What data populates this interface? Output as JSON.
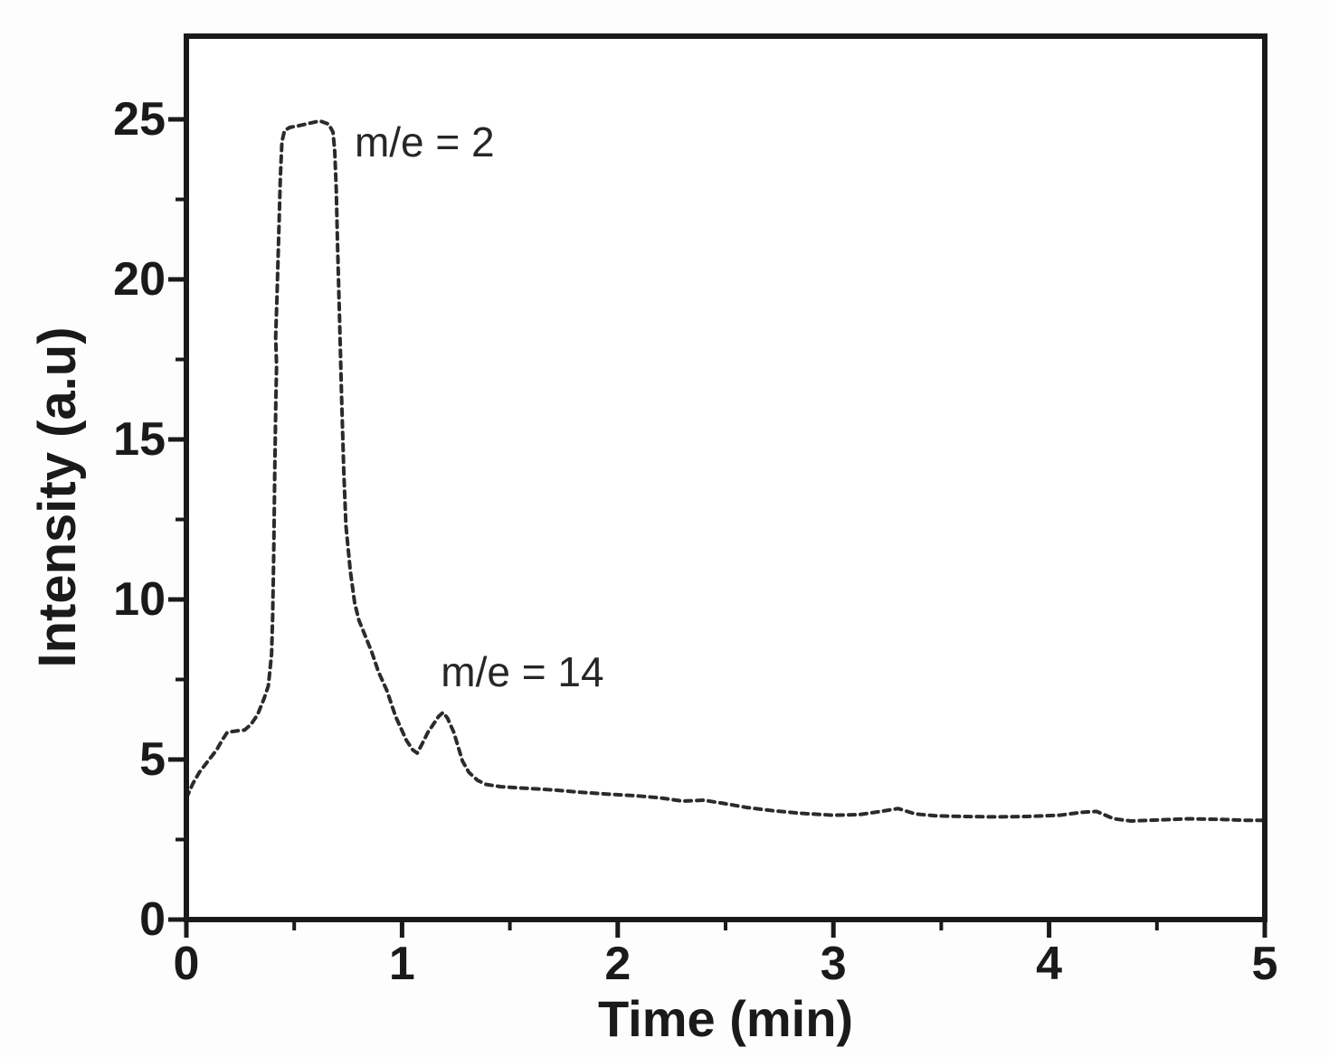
{
  "figure": {
    "background": "#fdfdfd",
    "plot_background": "#ffffff",
    "frame_color": "#1a1a1a",
    "text_color": "#1a1a1a"
  },
  "chart_data": {
    "type": "line",
    "title": "",
    "xlabel": "Time (min)",
    "ylabel": "Intensity (a.u)",
    "xlim": [
      0,
      5
    ],
    "ylim": [
      0,
      27.6
    ],
    "grid": false,
    "legend": false,
    "x_major_ticks": [
      0,
      1,
      2,
      3,
      4,
      5
    ],
    "x_minor_ticks": [
      0.5,
      1.5,
      2.5,
      3.5,
      4.5
    ],
    "y_major_ticks": [
      0,
      5,
      10,
      15,
      20,
      25
    ],
    "y_minor_ticks": [
      2.5,
      7.5,
      12.5,
      17.5,
      22.5
    ],
    "annotations": [
      {
        "id": "annotation-me-2",
        "text": "m/e = 2",
        "x": 0.78,
        "y": 24.3
      },
      {
        "id": "annotation-me-14",
        "text": "m/e = 14",
        "x": 1.18,
        "y": 7.74
      }
    ],
    "series": [
      {
        "name": "ion-current-trace",
        "style": "dashed",
        "color": "#2b2b2b",
        "points": [
          [
            0,
            3.8
          ],
          [
            0.03,
            4.25
          ],
          [
            0.06,
            4.6
          ],
          [
            0.1,
            4.95
          ],
          [
            0.14,
            5.3
          ],
          [
            0.17,
            5.65
          ],
          [
            0.19,
            5.85
          ],
          [
            0.24,
            5.9
          ],
          [
            0.27,
            5.92
          ],
          [
            0.3,
            6.1
          ],
          [
            0.33,
            6.4
          ],
          [
            0.36,
            6.9
          ],
          [
            0.38,
            7.3
          ],
          [
            0.395,
            8.3
          ],
          [
            0.4,
            9.5
          ],
          [
            0.405,
            11.5
          ],
          [
            0.41,
            14
          ],
          [
            0.415,
            16.2
          ],
          [
            0.418,
            17.3
          ],
          [
            0.414,
            18.2
          ],
          [
            0.42,
            19.4
          ],
          [
            0.425,
            20.6
          ],
          [
            0.43,
            21.8
          ],
          [
            0.436,
            23.2
          ],
          [
            0.443,
            24.3
          ],
          [
            0.455,
            24.65
          ],
          [
            0.48,
            24.75
          ],
          [
            0.52,
            24.8
          ],
          [
            0.57,
            24.88
          ],
          [
            0.62,
            24.95
          ],
          [
            0.66,
            24.85
          ],
          [
            0.68,
            24.6
          ],
          [
            0.688,
            24
          ],
          [
            0.695,
            22.8
          ],
          [
            0.7,
            21.3
          ],
          [
            0.71,
            18.8
          ],
          [
            0.72,
            16.3
          ],
          [
            0.73,
            14
          ],
          [
            0.74,
            12.3
          ],
          [
            0.76,
            10.9
          ],
          [
            0.78,
            9.9
          ],
          [
            0.8,
            9.35
          ],
          [
            0.83,
            8.85
          ],
          [
            0.86,
            8.35
          ],
          [
            0.89,
            7.75
          ],
          [
            0.93,
            7.15
          ],
          [
            0.97,
            6.35
          ],
          [
            1.02,
            5.6
          ],
          [
            1.05,
            5.3
          ],
          [
            1.07,
            5.2
          ],
          [
            1.09,
            5.45
          ],
          [
            1.12,
            5.85
          ],
          [
            1.15,
            6.15
          ],
          [
            1.17,
            6.35
          ],
          [
            1.19,
            6.47
          ],
          [
            1.21,
            6.3
          ],
          [
            1.24,
            5.85
          ],
          [
            1.26,
            5.4
          ],
          [
            1.28,
            4.95
          ],
          [
            1.31,
            4.6
          ],
          [
            1.35,
            4.35
          ],
          [
            1.39,
            4.22
          ],
          [
            1.46,
            4.15
          ],
          [
            1.58,
            4.1
          ],
          [
            1.7,
            4.05
          ],
          [
            1.82,
            3.98
          ],
          [
            1.95,
            3.92
          ],
          [
            2.08,
            3.87
          ],
          [
            2.2,
            3.8
          ],
          [
            2.3,
            3.7
          ],
          [
            2.4,
            3.73
          ],
          [
            2.5,
            3.62
          ],
          [
            2.6,
            3.5
          ],
          [
            2.72,
            3.4
          ],
          [
            2.85,
            3.32
          ],
          [
            3,
            3.26
          ],
          [
            3.12,
            3.28
          ],
          [
            3.22,
            3.38
          ],
          [
            3.3,
            3.47
          ],
          [
            3.38,
            3.3
          ],
          [
            3.48,
            3.24
          ],
          [
            3.6,
            3.22
          ],
          [
            3.75,
            3.21
          ],
          [
            3.9,
            3.22
          ],
          [
            4.05,
            3.26
          ],
          [
            4.15,
            3.35
          ],
          [
            4.22,
            3.38
          ],
          [
            4.3,
            3.15
          ],
          [
            4.38,
            3.08
          ],
          [
            4.5,
            3.11
          ],
          [
            4.65,
            3.15
          ],
          [
            4.8,
            3.13
          ],
          [
            4.92,
            3.1
          ],
          [
            5,
            3.1
          ]
        ]
      }
    ]
  }
}
